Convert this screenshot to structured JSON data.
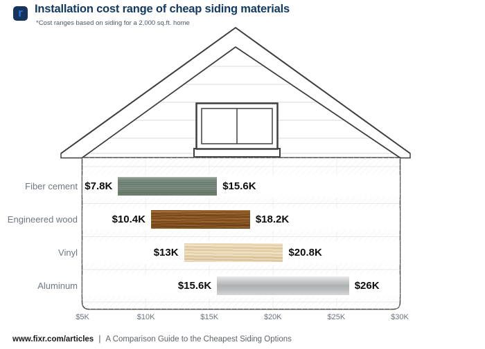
{
  "header": {
    "logo_letter": "r",
    "title": "Installation cost range of cheap siding materials",
    "subtitle": "*Cost ranges based on siding for a 2,000 sq.ft. home",
    "title_color": "#123a63",
    "logo_bg_color": "#16355e",
    "logo_letter_color": "#2e73d1"
  },
  "chart_data": {
    "type": "bar",
    "subtype": "horizontal-range-bar",
    "title": "Installation cost range of cheap siding materials",
    "note": "*Cost ranges based on siding for a 2,000 sq.ft. home",
    "unit": "USD (thousands)",
    "xlim": [
      5,
      30
    ],
    "xtick_values": [
      5,
      10,
      15,
      20,
      25,
      30
    ],
    "xtick_labels": [
      "$5K",
      "$10K",
      "$15K",
      "$20K",
      "$25K",
      "$30K"
    ],
    "grid": true,
    "categories": [
      "Fiber cement",
      "Engineered wood",
      "Vinyl",
      "Aluminum"
    ],
    "bars": [
      {
        "category": "Fiber cement",
        "min": 7.8,
        "max": 15.6,
        "min_label": "$7.8K",
        "max_label": "$15.6K",
        "texture": "fiber-cement",
        "color": "#74877a"
      },
      {
        "category": "Engineered wood",
        "min": 10.4,
        "max": 18.2,
        "min_label": "$10.4K",
        "max_label": "$18.2K",
        "texture": "engineered-wood",
        "color": "#8a5428"
      },
      {
        "category": "Vinyl",
        "min": 13.0,
        "max": 20.8,
        "min_label": "$13K",
        "max_label": "$20.8K",
        "texture": "vinyl",
        "color": "#e0c9a2"
      },
      {
        "category": "Aluminum",
        "min": 15.6,
        "max": 26.0,
        "min_label": "$15.6K",
        "max_label": "$26K",
        "texture": "aluminum",
        "color": "#b9bcbe"
      }
    ]
  },
  "footer": {
    "site": "www.fixr.com/articles",
    "separator": "|",
    "caption": "A Comparison Guide to the Cheapest Siding Options"
  }
}
